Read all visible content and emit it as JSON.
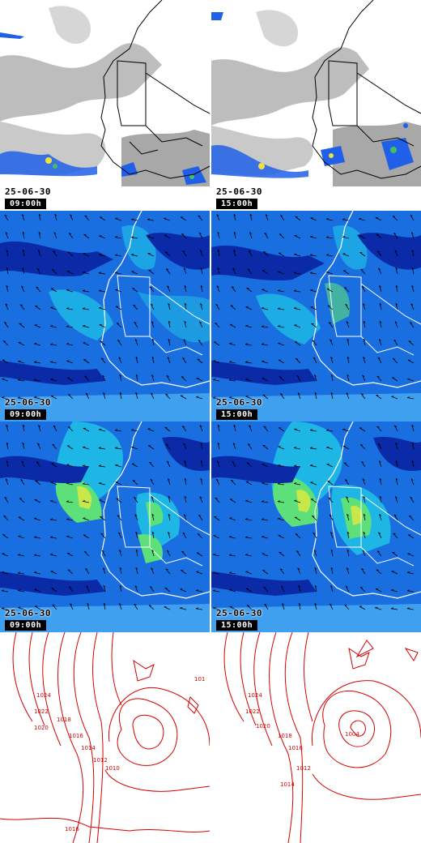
{
  "rows": [
    {
      "kind": "satellite-ir",
      "panels": [
        {
          "date": "25-06-30",
          "time": "09:00h"
        },
        {
          "date": "25-06-30",
          "time": "15:00h"
        }
      ]
    },
    {
      "kind": "wind-field",
      "panels": [
        {
          "date": "25-06-30",
          "time": "09:00h"
        },
        {
          "date": "25-06-30",
          "time": "15:00h"
        }
      ]
    },
    {
      "kind": "wind-field-upper",
      "panels": [
        {
          "date": "25-06-30",
          "time": "09:00h"
        },
        {
          "date": "25-06-30",
          "time": "15:00h"
        }
      ]
    },
    {
      "kind": "pressure-isobars",
      "panels": [
        {
          "isobar_labels": [
            "1024",
            "1022",
            "1020",
            "1018",
            "1016",
            "1014",
            "1012",
            "1010",
            "101",
            "1016"
          ]
        },
        {
          "isobar_labels": [
            "1024",
            "1022",
            "1020",
            "1018",
            "1016",
            "1014",
            "1012",
            "1004"
          ]
        }
      ]
    }
  ],
  "colors": {
    "ocean_blue": "#1a6fe0",
    "deep_blue": "#0a2aa8",
    "cyan": "#1ec8e6",
    "green": "#5de07a",
    "yellow_green": "#c8e84a",
    "isobar_red": "#d40000",
    "coast_line": "#ffffff",
    "border_line": "#000000"
  }
}
